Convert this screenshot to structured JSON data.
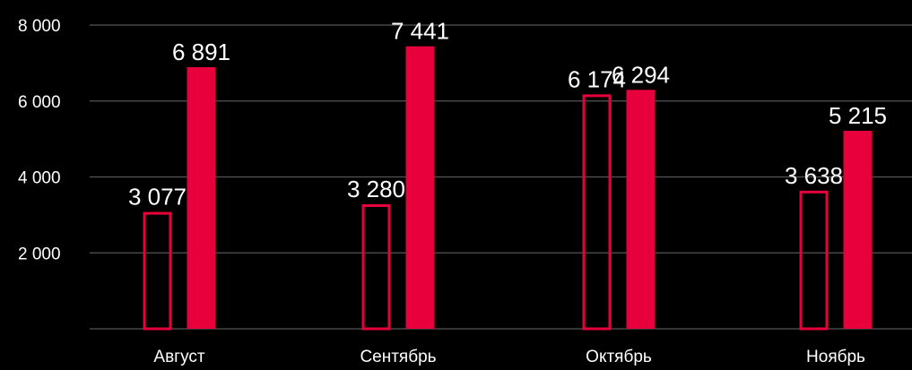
{
  "chart_data": {
    "type": "bar",
    "categories": [
      "Август",
      "Сентябрь",
      "Октябрь",
      "Ноябрь"
    ],
    "series": [
      {
        "values": [
          3077,
          3280,
          6174,
          3638
        ],
        "value_labels": [
          "3 077",
          "3 280",
          "6 174",
          "3 638"
        ],
        "style": "outline",
        "color": "#e8003c"
      },
      {
        "values": [
          6891,
          7441,
          6294,
          5215
        ],
        "value_labels": [
          "6 891",
          "7 441",
          "6 294",
          "5 215"
        ],
        "style": "filled",
        "color": "#e8003c"
      }
    ],
    "yticks": [
      2000,
      4000,
      6000,
      8000
    ],
    "ytick_labels": [
      "2 000",
      "4 000",
      "6 000",
      "8 000"
    ],
    "ylim": [
      0,
      8000
    ],
    "grid": true,
    "legend": "none",
    "title": "",
    "xlabel": "",
    "ylabel": ""
  },
  "colors": {
    "background": "#000000",
    "text": "#ffffff",
    "grid": "#555555",
    "accent": "#e8003c"
  }
}
